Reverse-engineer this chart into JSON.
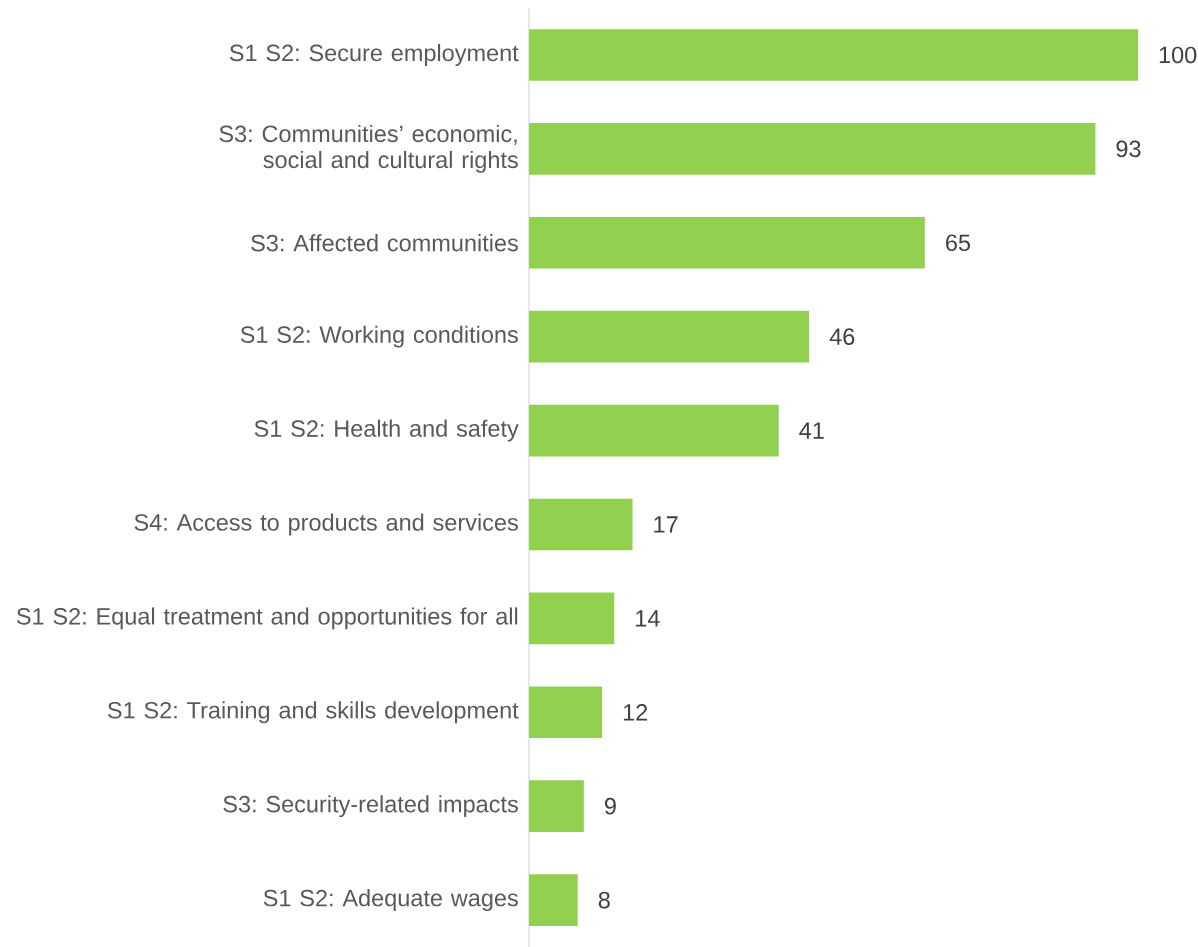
{
  "chart_data": {
    "type": "bar",
    "orientation": "horizontal",
    "categories": [
      "S1 S2: Secure employment",
      "S3: Communities’ economic, social and cultural rights",
      "S3: Affected communities",
      "S1 S2: Working conditions",
      "S1 S2: Health and safety",
      "S4: Access to products and services",
      "S1 S2: Equal treatment and opportunities for all",
      "S1 S2: Training and skills development",
      "S3: Security-related impacts",
      "S1 S2: Adequate wages"
    ],
    "values": [
      100,
      93,
      65,
      46,
      41,
      17,
      14,
      12,
      9,
      8
    ],
    "color": "#92d050",
    "data_labels": true,
    "tick_labels": "y",
    "grid": false
  }
}
